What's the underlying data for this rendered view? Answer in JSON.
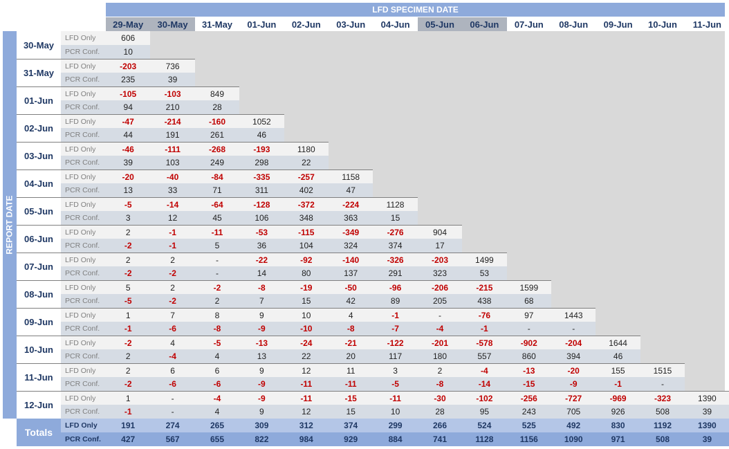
{
  "header": {
    "title": "LFD SPECIMEN DATE",
    "side_label": "REPORT DATE",
    "dates": [
      "29-May",
      "30-May",
      "31-May",
      "01-Jun",
      "02-Jun",
      "03-Jun",
      "04-Jun",
      "05-Jun",
      "06-Jun",
      "07-Jun",
      "08-Jun",
      "09-Jun",
      "10-Jun",
      "11-Jun"
    ]
  },
  "labels": {
    "lfd": "LFD Only",
    "pcr": "PCR Conf."
  },
  "rows": [
    {
      "date": "30-May",
      "lfd": [
        "606"
      ],
      "pcr": [
        "10"
      ]
    },
    {
      "date": "31-May",
      "lfd": [
        "-203",
        "736"
      ],
      "pcr": [
        "235",
        "39"
      ]
    },
    {
      "date": "01-Jun",
      "lfd": [
        "-105",
        "-103",
        "849"
      ],
      "pcr": [
        "94",
        "210",
        "28"
      ]
    },
    {
      "date": "02-Jun",
      "lfd": [
        "-47",
        "-214",
        "-160",
        "1052"
      ],
      "pcr": [
        "44",
        "191",
        "261",
        "46"
      ]
    },
    {
      "date": "03-Jun",
      "lfd": [
        "-46",
        "-111",
        "-268",
        "-193",
        "1180"
      ],
      "pcr": [
        "39",
        "103",
        "249",
        "298",
        "22"
      ]
    },
    {
      "date": "04-Jun",
      "lfd": [
        "-20",
        "-40",
        "-84",
        "-335",
        "-257",
        "1158"
      ],
      "pcr": [
        "13",
        "33",
        "71",
        "311",
        "402",
        "47"
      ]
    },
    {
      "date": "05-Jun",
      "lfd": [
        "-5",
        "-14",
        "-64",
        "-128",
        "-372",
        "-224",
        "1128"
      ],
      "pcr": [
        "3",
        "12",
        "45",
        "106",
        "348",
        "363",
        "15"
      ]
    },
    {
      "date": "06-Jun",
      "lfd": [
        "2",
        "-1",
        "-11",
        "-53",
        "-115",
        "-349",
        "-276",
        "904"
      ],
      "pcr": [
        "-2",
        "-1",
        "5",
        "36",
        "104",
        "324",
        "374",
        "17"
      ]
    },
    {
      "date": "07-Jun",
      "lfd": [
        "2",
        "2",
        "-",
        "-22",
        "-92",
        "-140",
        "-326",
        "-203",
        "1499"
      ],
      "pcr": [
        "-2",
        "-2",
        "-",
        "14",
        "80",
        "137",
        "291",
        "323",
        "53"
      ]
    },
    {
      "date": "08-Jun",
      "lfd": [
        "5",
        "2",
        "-2",
        "-8",
        "-19",
        "-50",
        "-96",
        "-206",
        "-215",
        "1599"
      ],
      "pcr": [
        "-5",
        "-2",
        "2",
        "7",
        "15",
        "42",
        "89",
        "205",
        "438",
        "68"
      ]
    },
    {
      "date": "09-Jun",
      "lfd": [
        "1",
        "7",
        "8",
        "9",
        "10",
        "4",
        "-1",
        "-",
        "-76",
        "97",
        "1443"
      ],
      "pcr": [
        "-1",
        "-6",
        "-8",
        "-9",
        "-10",
        "-8",
        "-7",
        "-4",
        "-1",
        "-",
        "-"
      ]
    },
    {
      "date": "10-Jun",
      "lfd": [
        "-2",
        "4",
        "-5",
        "-13",
        "-24",
        "-21",
        "-122",
        "-201",
        "-578",
        "-902",
        "-204",
        "1644"
      ],
      "pcr": [
        "2",
        "-4",
        "4",
        "13",
        "22",
        "20",
        "117",
        "180",
        "557",
        "860",
        "394",
        "46"
      ]
    },
    {
      "date": "11-Jun",
      "lfd": [
        "2",
        "6",
        "6",
        "9",
        "12",
        "11",
        "3",
        "2",
        "-4",
        "-13",
        "-20",
        "155",
        "1515"
      ],
      "pcr": [
        "-2",
        "-6",
        "-6",
        "-9",
        "-11",
        "-11",
        "-5",
        "-8",
        "-14",
        "-15",
        "-9",
        "-1",
        "-"
      ]
    },
    {
      "date": "12-Jun",
      "lfd": [
        "1",
        "-",
        "-4",
        "-9",
        "-11",
        "-15",
        "-11",
        "-30",
        "-102",
        "-256",
        "-727",
        "-969",
        "-323",
        "1390"
      ],
      "pcr": [
        "-1",
        "-",
        "4",
        "9",
        "12",
        "15",
        "10",
        "28",
        "95",
        "243",
        "705",
        "926",
        "508",
        "39"
      ]
    }
  ],
  "totals": {
    "label": "Totals",
    "lfd": [
      "191",
      "274",
      "265",
      "309",
      "312",
      "374",
      "299",
      "266",
      "524",
      "525",
      "492",
      "830",
      "1192",
      "1390"
    ],
    "pcr": [
      "427",
      "567",
      "655",
      "822",
      "984",
      "929",
      "884",
      "741",
      "1128",
      "1156",
      "1090",
      "971",
      "508",
      "39"
    ]
  },
  "colors": {
    "negative": "#c00000",
    "header_blue": "#8eaadb",
    "header_gray": "#aeb4be"
  }
}
